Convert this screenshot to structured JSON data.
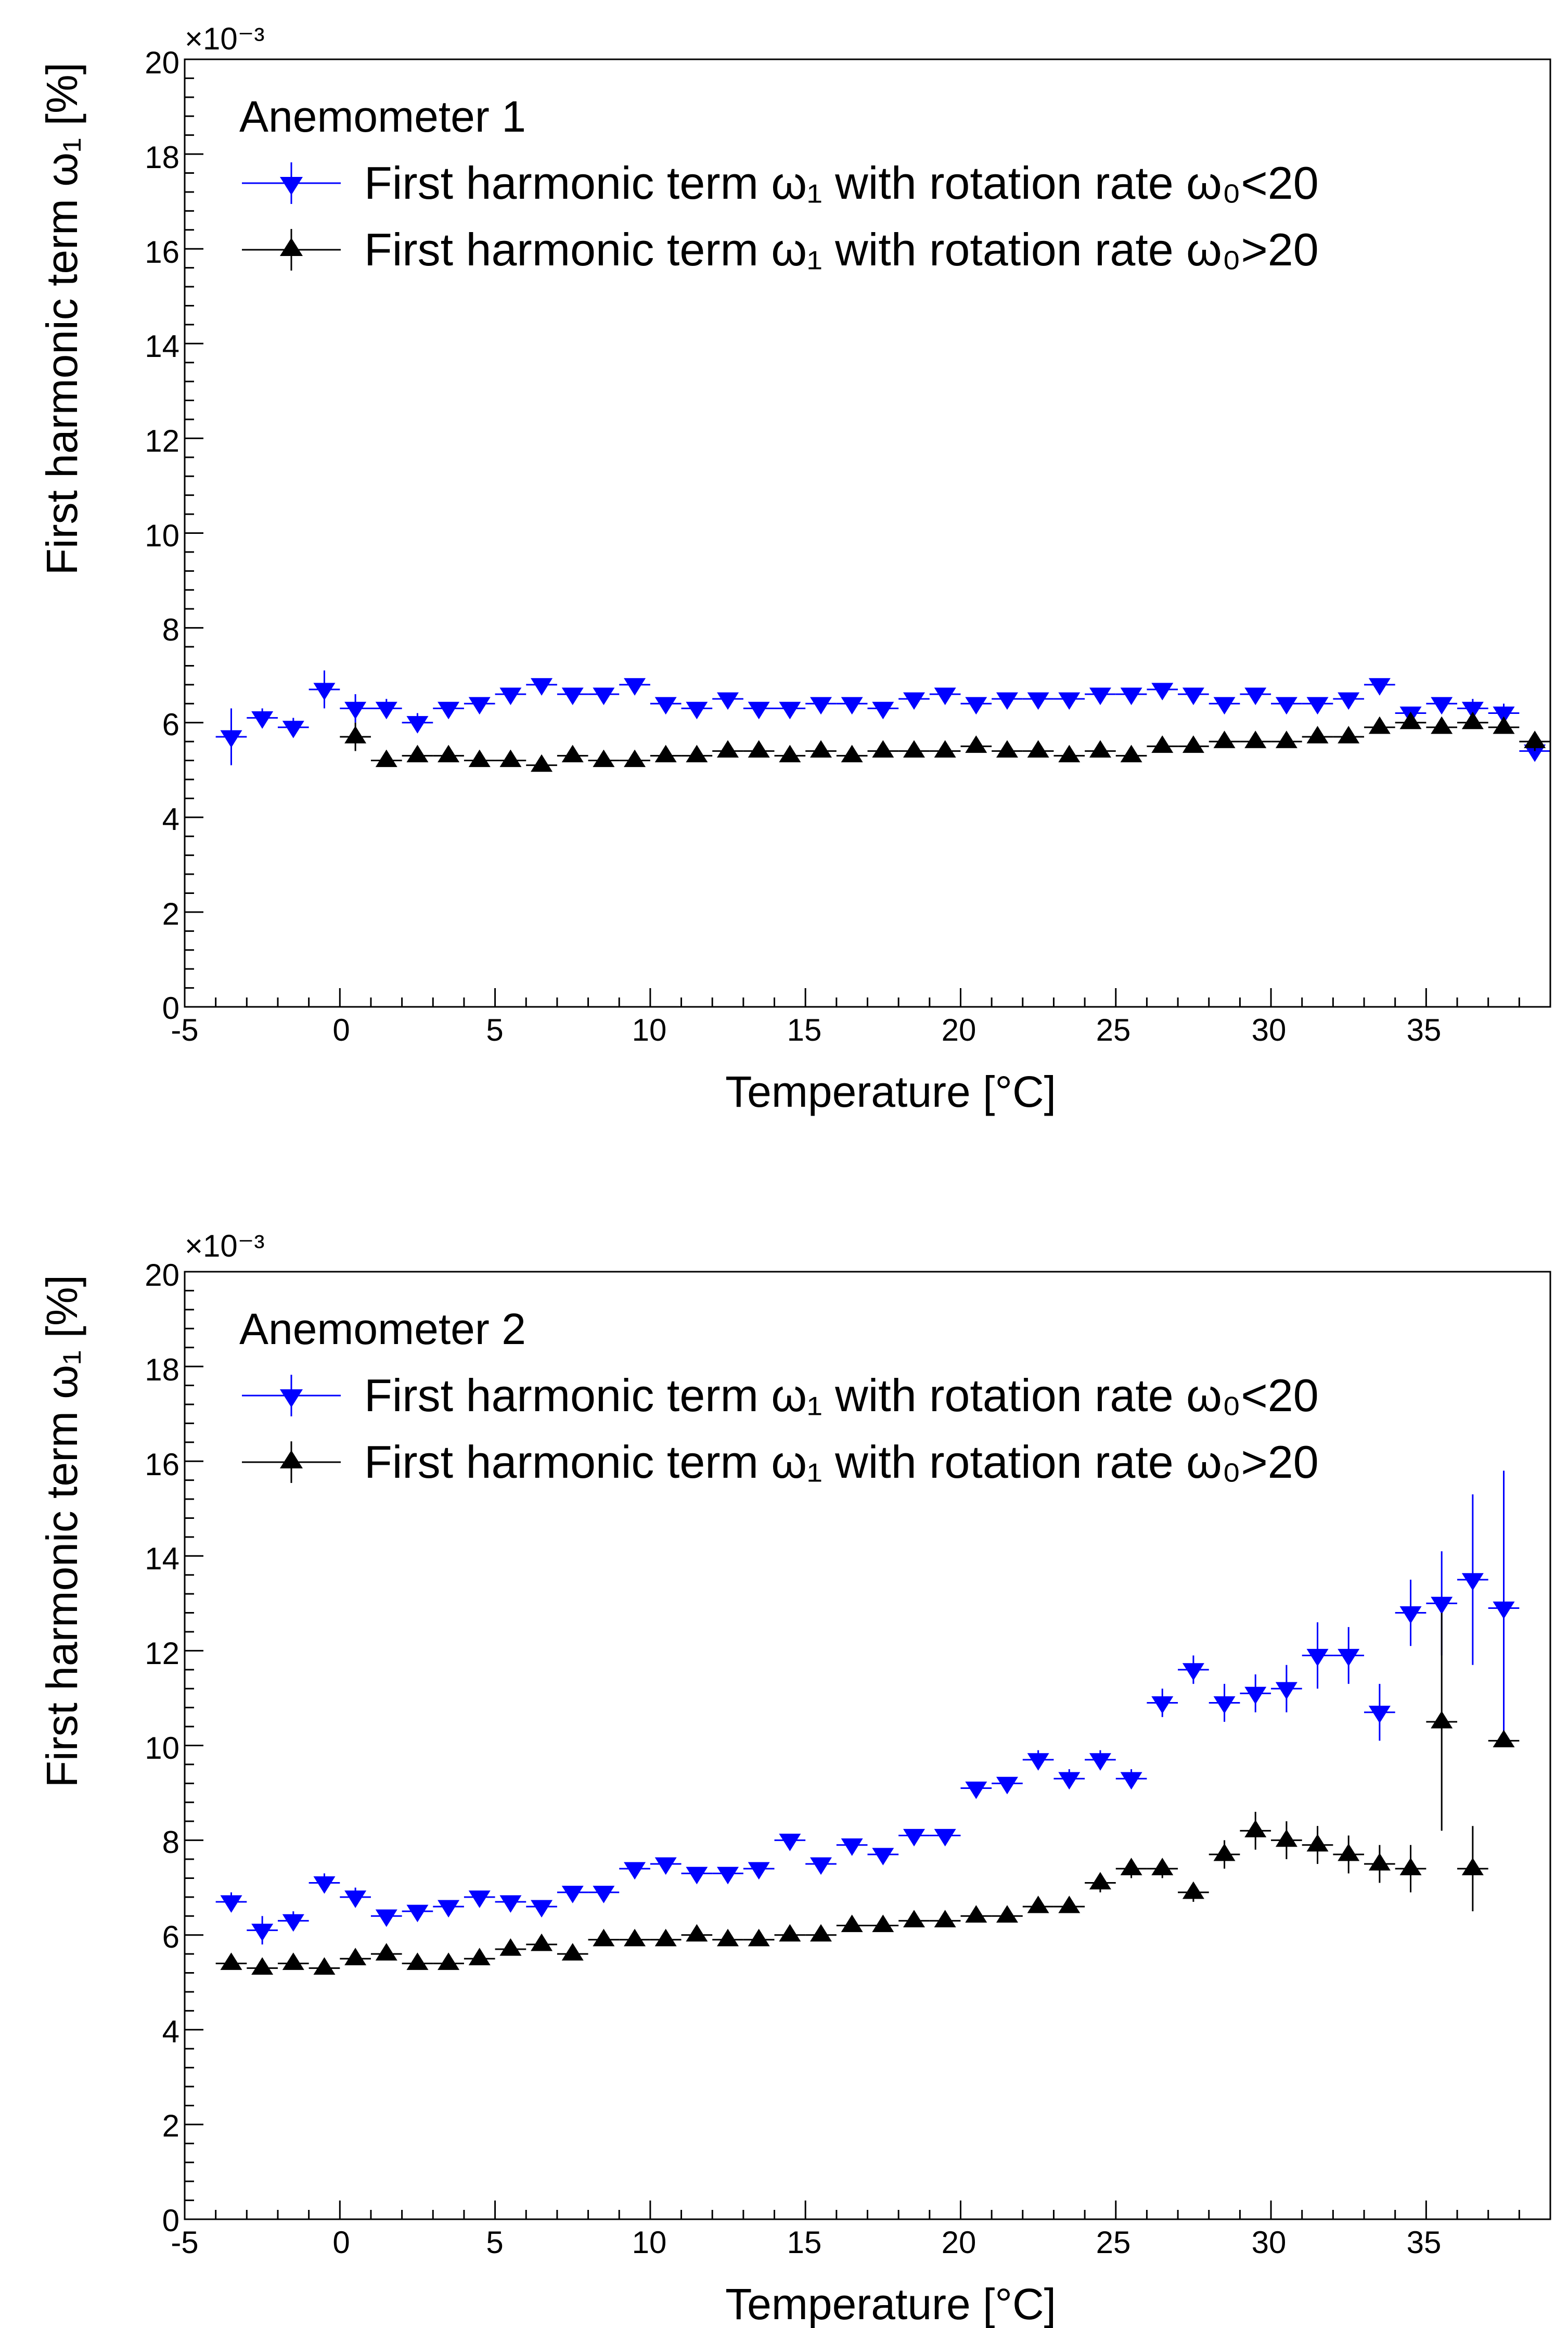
{
  "chart_data": [
    {
      "type": "scatter",
      "title": "",
      "annotation": "Anemometer 1",
      "xlabel": "Temperature [°C]",
      "ylabel": "First harmonic term ω₁ [%]",
      "y_multiplier": "×10⁻³",
      "xlim": [
        -5,
        39
      ],
      "ylim": [
        0,
        20
      ],
      "x_ticks": [
        -5,
        0,
        5,
        10,
        15,
        20,
        25,
        30,
        35
      ],
      "y_ticks": [
        0,
        2,
        4,
        6,
        8,
        10,
        12,
        14,
        16,
        18,
        20
      ],
      "legend": [
        "First harmonic term ω₁ with rotation rate ω₀<20",
        "First harmonic term ω₁ with rotation rate ω₀>20"
      ],
      "series": [
        {
          "name": "First harmonic term ω₁ with rotation rate ω₀<20",
          "color": "#0000ff",
          "marker": "triangle-down",
          "x": [
            -3.5,
            -2.5,
            -1.5,
            -0.5,
            0.5,
            1.5,
            2.5,
            3.5,
            4.5,
            5.5,
            6.5,
            7.5,
            8.5,
            9.5,
            10.5,
            11.5,
            12.5,
            13.5,
            14.5,
            15.5,
            16.5,
            17.5,
            18.5,
            19.5,
            20.5,
            21.5,
            22.5,
            23.5,
            24.5,
            25.5,
            26.5,
            27.5,
            28.5,
            29.5,
            30.5,
            31.5,
            32.5,
            33.5,
            34.5,
            35.5,
            36.5,
            37.5,
            38.5
          ],
          "y": [
            5.7,
            6.1,
            5.9,
            6.7,
            6.3,
            6.3,
            6.0,
            6.3,
            6.4,
            6.6,
            6.8,
            6.6,
            6.6,
            6.8,
            6.4,
            6.3,
            6.5,
            6.3,
            6.3,
            6.4,
            6.4,
            6.3,
            6.5,
            6.6,
            6.4,
            6.5,
            6.5,
            6.5,
            6.6,
            6.6,
            6.7,
            6.6,
            6.4,
            6.6,
            6.4,
            6.4,
            6.5,
            6.8,
            6.2,
            6.4,
            6.3,
            6.2,
            5.4
          ],
          "yerr": [
            0.6,
            0.2,
            0.2,
            0.4,
            0.3,
            0.2,
            0.2,
            0.1,
            0.1,
            0.1,
            0.1,
            0.1,
            0.1,
            0.1,
            0.1,
            0.1,
            0.1,
            0.1,
            0.1,
            0.1,
            0.1,
            0.1,
            0.1,
            0.1,
            0.1,
            0.1,
            0.1,
            0.1,
            0.1,
            0.1,
            0.1,
            0.1,
            0.1,
            0.1,
            0.1,
            0.1,
            0.1,
            0.1,
            0.1,
            0.1,
            0.2,
            0.2,
            0.2
          ]
        },
        {
          "name": "First harmonic term ω₁ with rotation rate ω₀>20",
          "color": "#000000",
          "marker": "triangle-up",
          "x": [
            0.5,
            1.5,
            2.5,
            3.5,
            4.5,
            5.5,
            6.5,
            7.5,
            8.5,
            9.5,
            10.5,
            11.5,
            12.5,
            13.5,
            14.5,
            15.5,
            16.5,
            17.5,
            18.5,
            19.5,
            20.5,
            21.5,
            22.5,
            23.5,
            24.5,
            25.5,
            26.5,
            27.5,
            28.5,
            29.5,
            30.5,
            31.5,
            32.5,
            33.5,
            34.5,
            35.5,
            36.5,
            37.5,
            38.5
          ],
          "y": [
            5.7,
            5.2,
            5.3,
            5.3,
            5.2,
            5.2,
            5.1,
            5.3,
            5.2,
            5.2,
            5.3,
            5.3,
            5.4,
            5.4,
            5.3,
            5.4,
            5.3,
            5.4,
            5.4,
            5.4,
            5.5,
            5.4,
            5.4,
            5.3,
            5.4,
            5.3,
            5.5,
            5.5,
            5.6,
            5.6,
            5.6,
            5.7,
            5.7,
            5.9,
            6.0,
            5.9,
            6.0,
            5.9,
            5.6
          ],
          "yerr": [
            0.3,
            0.1,
            0.1,
            0.1,
            0.1,
            0.1,
            0.1,
            0.1,
            0.1,
            0.1,
            0.1,
            0.1,
            0.1,
            0.1,
            0.1,
            0.1,
            0.1,
            0.1,
            0.1,
            0.1,
            0.1,
            0.1,
            0.1,
            0.1,
            0.1,
            0.1,
            0.1,
            0.1,
            0.1,
            0.1,
            0.1,
            0.1,
            0.1,
            0.1,
            0.1,
            0.1,
            0.1,
            0.1,
            0.2
          ]
        }
      ]
    },
    {
      "type": "scatter",
      "title": "",
      "annotation": "Anemometer 2",
      "xlabel": "Temperature [°C]",
      "ylabel": "First harmonic term ω₁ [%]",
      "y_multiplier": "×10⁻³",
      "xlim": [
        -5,
        39
      ],
      "ylim": [
        0,
        20
      ],
      "x_ticks": [
        -5,
        0,
        5,
        10,
        15,
        20,
        25,
        30,
        35
      ],
      "y_ticks": [
        0,
        2,
        4,
        6,
        8,
        10,
        12,
        14,
        16,
        18,
        20
      ],
      "legend": [
        "First harmonic term ω₁ with rotation rate ω₀<20",
        "First harmonic term ω₁ with rotation rate ω₀>20"
      ],
      "series": [
        {
          "name": "First harmonic term ω₁ with rotation rate ω₀<20",
          "color": "#0000ff",
          "marker": "triangle-down",
          "x": [
            -3.5,
            -2.5,
            -1.5,
            -0.5,
            0.5,
            1.5,
            2.5,
            3.5,
            4.5,
            5.5,
            6.5,
            7.5,
            8.5,
            9.5,
            10.5,
            11.5,
            12.5,
            13.5,
            14.5,
            15.5,
            16.5,
            17.5,
            18.5,
            19.5,
            20.5,
            21.5,
            22.5,
            23.5,
            24.5,
            25.5,
            26.5,
            27.5,
            28.5,
            29.5,
            30.5,
            31.5,
            32.5,
            33.5,
            34.5,
            35.5,
            36.5,
            37.5
          ],
          "y": [
            6.7,
            6.1,
            6.3,
            7.1,
            6.8,
            6.4,
            6.5,
            6.6,
            6.8,
            6.7,
            6.6,
            6.9,
            6.9,
            7.4,
            7.5,
            7.3,
            7.3,
            7.4,
            8.0,
            7.5,
            7.9,
            7.7,
            8.1,
            8.1,
            9.1,
            9.2,
            9.7,
            9.3,
            9.7,
            9.3,
            10.9,
            11.6,
            10.9,
            11.1,
            11.2,
            11.9,
            11.9,
            10.7,
            12.8,
            13.0,
            13.5,
            12.9
          ],
          "yerr": [
            0.2,
            0.3,
            0.2,
            0.2,
            0.2,
            0.1,
            0.1,
            0.1,
            0.1,
            0.1,
            0.1,
            0.1,
            0.1,
            0.1,
            0.1,
            0.1,
            0.1,
            0.1,
            0.1,
            0.1,
            0.1,
            0.1,
            0.1,
            0.1,
            0.1,
            0.1,
            0.2,
            0.2,
            0.2,
            0.2,
            0.3,
            0.3,
            0.4,
            0.4,
            0.5,
            0.7,
            0.6,
            0.6,
            0.7,
            1.1,
            1.8,
            2.9
          ]
        },
        {
          "name": "First harmonic term ω₁ with rotation rate ω₀>20",
          "color": "#000000",
          "marker": "triangle-up",
          "x": [
            -3.5,
            -2.5,
            -1.5,
            -0.5,
            0.5,
            1.5,
            2.5,
            3.5,
            4.5,
            5.5,
            6.5,
            7.5,
            8.5,
            9.5,
            10.5,
            11.5,
            12.5,
            13.5,
            14.5,
            15.5,
            16.5,
            17.5,
            18.5,
            19.5,
            20.5,
            21.5,
            22.5,
            23.5,
            24.5,
            25.5,
            26.5,
            27.5,
            28.5,
            29.5,
            30.5,
            31.5,
            32.5,
            33.5,
            34.5,
            35.5,
            36.5,
            37.5
          ],
          "y": [
            5.4,
            5.3,
            5.4,
            5.3,
            5.5,
            5.6,
            5.4,
            5.4,
            5.5,
            5.7,
            5.8,
            5.6,
            5.9,
            5.9,
            5.9,
            6.0,
            5.9,
            5.9,
            6.0,
            6.0,
            6.2,
            6.2,
            6.3,
            6.3,
            6.4,
            6.4,
            6.6,
            6.6,
            7.1,
            7.4,
            7.4,
            6.9,
            7.7,
            8.2,
            8.0,
            7.9,
            7.7,
            7.5,
            7.4,
            10.5,
            7.4,
            10.1
          ],
          "yerr": [
            0.1,
            0.1,
            0.1,
            0.1,
            0.1,
            0.1,
            0.1,
            0.1,
            0.1,
            0.1,
            0.1,
            0.1,
            0.1,
            0.1,
            0.1,
            0.1,
            0.1,
            0.1,
            0.1,
            0.1,
            0.1,
            0.1,
            0.1,
            0.1,
            0.1,
            0.1,
            0.1,
            0.1,
            0.2,
            0.2,
            0.2,
            0.2,
            0.3,
            0.4,
            0.4,
            0.4,
            0.4,
            0.4,
            0.5,
            2.3,
            0.9,
            0.1
          ]
        }
      ]
    }
  ]
}
